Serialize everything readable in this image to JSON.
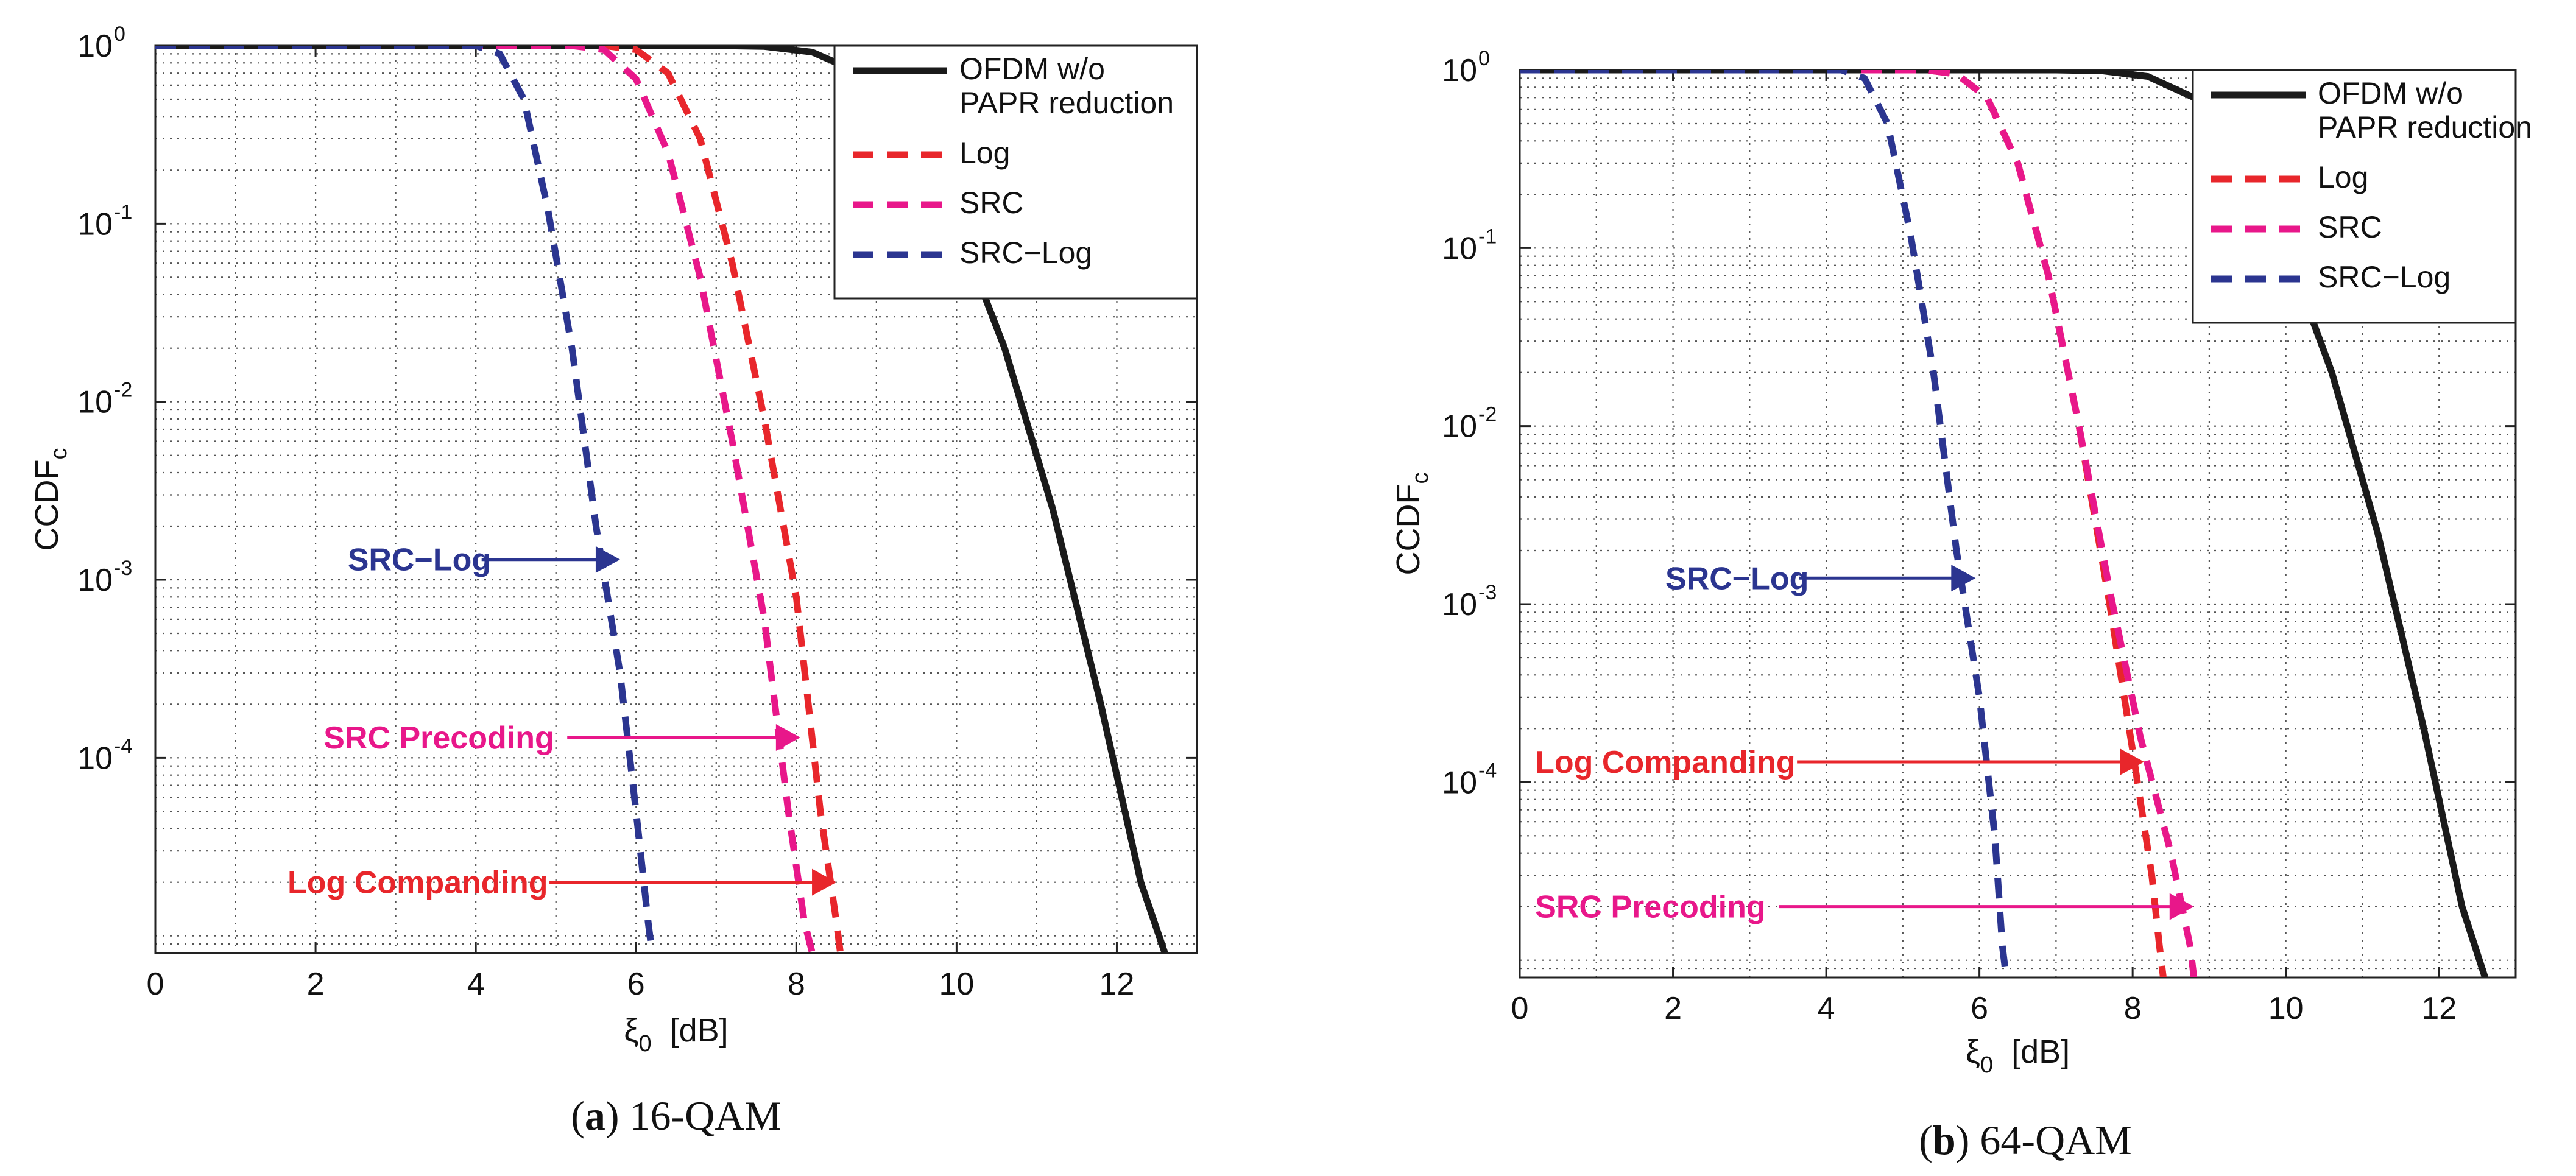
{
  "chart_data": [
    {
      "id": "a",
      "type": "line",
      "caption_bold": "a",
      "caption_text": " 16-QAM",
      "xlabel": "ξ",
      "xlabel_sub": "0",
      "xlabel_unit": "[dB]",
      "ylabel": "CCDF",
      "ylabel_sub": "c",
      "xlim": [
        0,
        13
      ],
      "ylim": [
        8e-06,
        1
      ],
      "yscale": "log",
      "grid": true,
      "legend_position": "top-right",
      "x_ticks": [
        "0",
        "2",
        "4",
        "6",
        "8",
        "10",
        "12"
      ],
      "x_tick_values": [
        0,
        2,
        4,
        6,
        8,
        10,
        12
      ],
      "y_ticks": [
        {
          "value": 1,
          "base": "10",
          "exp": "0"
        },
        {
          "value": 0.1,
          "base": "10",
          "exp": "-1"
        },
        {
          "value": 0.01,
          "base": "10",
          "exp": "-2"
        },
        {
          "value": 0.001,
          "base": "10",
          "exp": "-3"
        },
        {
          "value": 0.0001,
          "base": "10",
          "exp": "-4"
        }
      ],
      "series": [
        {
          "name": "OFDM w/o PAPR reduction",
          "legend_lines": [
            "OFDM w/o",
            "PAPR reduction"
          ],
          "color": "#1a1a1a",
          "dash": "solid",
          "x": [
            0,
            7,
            7.6,
            8.2,
            8.8,
            9.4,
            10,
            10.6,
            11.2,
            11.8,
            12.3,
            12.6
          ],
          "y": [
            1,
            1,
            0.99,
            0.92,
            0.7,
            0.35,
            0.1,
            0.02,
            0.0025,
            0.0002,
            2e-05,
            8e-06
          ]
        },
        {
          "name": "Log",
          "legend_lines": [
            "Log"
          ],
          "color": "#e8262b",
          "dash": "dashed",
          "x": [
            0,
            5.6,
            6.0,
            6.4,
            6.8,
            7.2,
            7.6,
            8.0,
            8.3,
            8.5,
            8.55
          ],
          "y": [
            1,
            1,
            0.95,
            0.7,
            0.3,
            0.06,
            0.008,
            0.0008,
            5e-05,
            1.2e-05,
            8e-06
          ]
        },
        {
          "name": "SRC",
          "legend_lines": [
            "SRC"
          ],
          "color": "#e8178a",
          "dash": "dashed",
          "x": [
            0,
            5.2,
            5.6,
            6.0,
            6.4,
            6.8,
            7.2,
            7.6,
            7.9,
            8.1,
            8.2
          ],
          "y": [
            1,
            1,
            0.95,
            0.65,
            0.25,
            0.05,
            0.006,
            0.0006,
            5e-05,
            1.2e-05,
            8e-06
          ]
        },
        {
          "name": "SRC-Log",
          "legend_lines": [
            "SRC−Log"
          ],
          "color": "#2b3590",
          "dash": "dashed",
          "x": [
            0,
            4.0,
            4.3,
            4.6,
            4.9,
            5.2,
            5.5,
            5.8,
            6.0,
            6.15,
            6.2
          ],
          "y": [
            1,
            1,
            0.9,
            0.5,
            0.12,
            0.02,
            0.002,
            0.0003,
            5e-05,
            1.2e-05,
            8e-06
          ]
        }
      ],
      "annotations": [
        {
          "text": "SRC−Log",
          "color": "#2b3590",
          "arrow_to_x": 5.8,
          "arrow_y": 0.0013,
          "text_x": 2.4
        },
        {
          "text": "SRC Precoding",
          "color": "#e8178a",
          "arrow_to_x": 8.05,
          "arrow_y": 0.00013,
          "text_x": 2.1
        },
        {
          "text": "Log Companding",
          "color": "#e8262b",
          "arrow_to_x": 8.5,
          "arrow_y": 2e-05,
          "text_x": 1.65
        }
      ]
    },
    {
      "id": "b",
      "type": "line",
      "caption_bold": "b",
      "caption_text": " 64-QAM",
      "xlabel": "ξ",
      "xlabel_sub": "0",
      "xlabel_unit": "[dB]",
      "ylabel": "CCDF",
      "ylabel_sub": "c",
      "xlim": [
        0,
        13
      ],
      "ylim": [
        8e-06,
        1
      ],
      "yscale": "log",
      "grid": true,
      "legend_position": "top-right",
      "x_ticks": [
        "0",
        "2",
        "4",
        "6",
        "8",
        "10",
        "12"
      ],
      "x_tick_values": [
        0,
        2,
        4,
        6,
        8,
        10,
        12
      ],
      "y_ticks": [
        {
          "value": 1,
          "base": "10",
          "exp": "0"
        },
        {
          "value": 0.1,
          "base": "10",
          "exp": "-1"
        },
        {
          "value": 0.01,
          "base": "10",
          "exp": "-2"
        },
        {
          "value": 0.001,
          "base": "10",
          "exp": "-3"
        },
        {
          "value": 0.0001,
          "base": "10",
          "exp": "-4"
        }
      ],
      "series": [
        {
          "name": "OFDM w/o PAPR reduction",
          "legend_lines": [
            "OFDM w/o",
            "PAPR reduction"
          ],
          "color": "#1a1a1a",
          "dash": "solid",
          "x": [
            0,
            7,
            7.6,
            8.2,
            8.8,
            9.4,
            10,
            10.6,
            11.2,
            11.8,
            12.3,
            12.6
          ],
          "y": [
            1,
            1,
            0.99,
            0.92,
            0.7,
            0.35,
            0.1,
            0.02,
            0.0025,
            0.0002,
            2e-05,
            8e-06
          ]
        },
        {
          "name": "Log",
          "legend_lines": [
            "Log"
          ],
          "color": "#e8262b",
          "dash": "dashed",
          "x": [
            0,
            5.3,
            5.7,
            6.1,
            6.5,
            6.9,
            7.3,
            7.7,
            8.0,
            8.25,
            8.35,
            8.4
          ],
          "y": [
            1,
            1,
            0.95,
            0.7,
            0.3,
            0.07,
            0.01,
            0.001,
            0.00015,
            3e-05,
            1.2e-05,
            8e-06
          ]
        },
        {
          "name": "SRC",
          "legend_lines": [
            "SRC"
          ],
          "color": "#e8178a",
          "dash": "dashed",
          "x": [
            0,
            5.3,
            5.7,
            6.1,
            6.5,
            6.9,
            7.3,
            7.7,
            8.1,
            8.5,
            8.75,
            8.8
          ],
          "y": [
            1,
            1,
            0.95,
            0.7,
            0.3,
            0.07,
            0.01,
            0.0012,
            0.00018,
            4e-05,
            1.2e-05,
            8e-06
          ]
        },
        {
          "name": "SRC-Log",
          "legend_lines": [
            "SRC−Log"
          ],
          "color": "#2b3590",
          "dash": "dashed",
          "x": [
            0,
            4.2,
            4.5,
            4.8,
            5.1,
            5.4,
            5.7,
            6.0,
            6.2,
            6.3,
            6.35
          ],
          "y": [
            1,
            1,
            0.9,
            0.5,
            0.12,
            0.02,
            0.002,
            0.0003,
            5e-05,
            1.2e-05,
            8e-06
          ]
        }
      ],
      "annotations": [
        {
          "text": "SRC−Log",
          "color": "#2b3590",
          "arrow_to_x": 5.95,
          "arrow_y": 0.0014,
          "text_x": 1.9
        },
        {
          "text": "Log Companding",
          "color": "#e8262b",
          "arrow_to_x": 8.15,
          "arrow_y": 0.00013,
          "text_x": 0.2
        },
        {
          "text": "SRC Precoding",
          "color": "#e8178a",
          "arrow_to_x": 8.8,
          "arrow_y": 2e-05,
          "text_x": 0.2
        }
      ]
    }
  ]
}
